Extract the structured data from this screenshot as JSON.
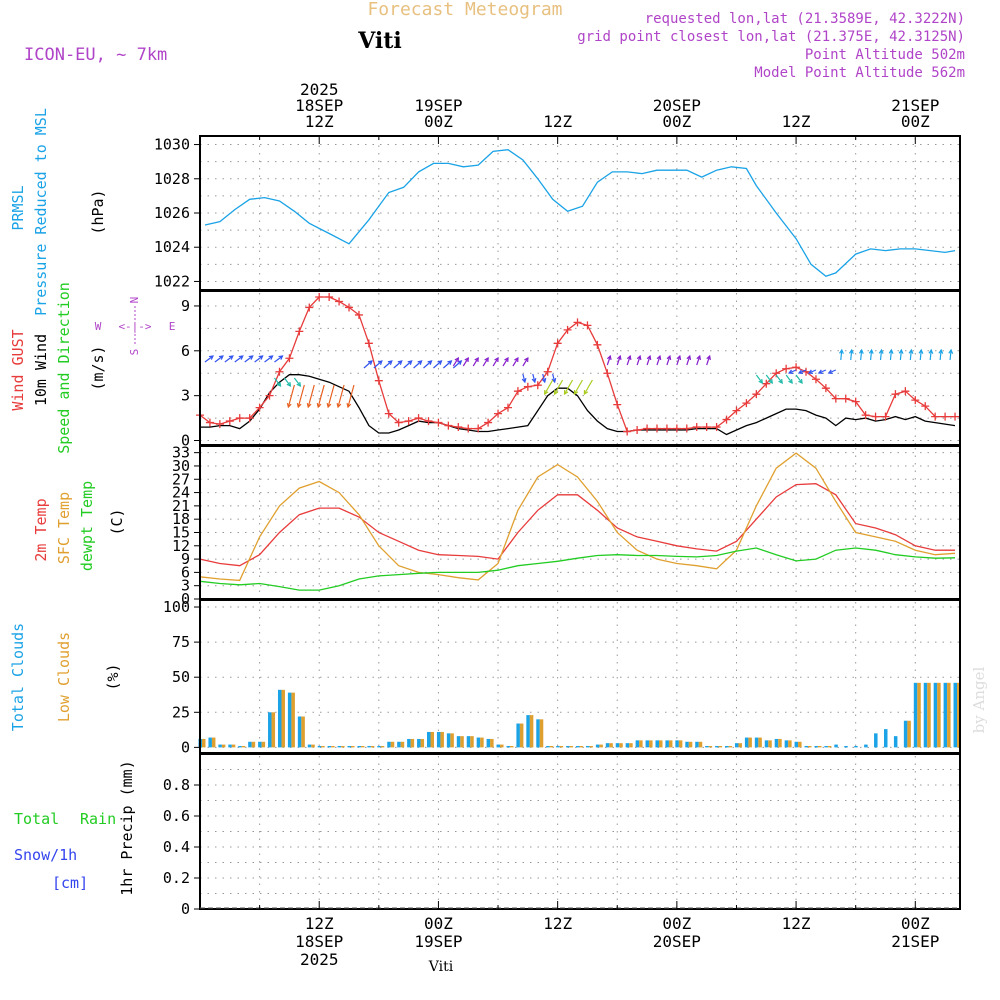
{
  "header": {
    "chart_title": "Forecast Meteogram",
    "location": "Viti",
    "model": "ICON-EU, ~ 7km",
    "requested_point": "requested lon,lat (21.3589E, 42.3222N)",
    "grid_point": "grid point closest lon,lat (21.375E, 42.3125N)",
    "point_altitude": "Point Altitude 502m",
    "model_altitude": "Model Point Altitude 562m",
    "footer_location": "Viti",
    "watermark": "by Angel"
  },
  "colors": {
    "pressure": "#1aa3e6",
    "gust": "#e83b3b",
    "wind": "#000000",
    "temp2m": "#e83b3b",
    "sfc_temp": "#e0a030",
    "dewpoint": "#22cc22",
    "total_clouds": "#1aa3e6",
    "low_clouds": "#e0a030",
    "rain": "#22cc22",
    "snow": "#3344ee",
    "meta_text": "#b044c8",
    "title_text": "#e8c080"
  },
  "time_axis": {
    "top_labels": [
      {
        "hour": 12,
        "lines": [
          "2025",
          "18SEP",
          "12Z"
        ]
      },
      {
        "hour": 24,
        "lines": [
          "19SEP",
          "00Z"
        ]
      },
      {
        "hour": 36,
        "lines": [
          "12Z"
        ]
      },
      {
        "hour": 48,
        "lines": [
          "20SEP",
          "00Z"
        ]
      },
      {
        "hour": 60,
        "lines": [
          "12Z"
        ]
      },
      {
        "hour": 72,
        "lines": [
          "21SEP",
          "00Z"
        ]
      }
    ],
    "bottom_labels": [
      {
        "hour": 12,
        "lines": [
          "12Z",
          "18SEP",
          "2025"
        ]
      },
      {
        "hour": 24,
        "lines": [
          "00Z",
          "19SEP"
        ]
      },
      {
        "hour": 36,
        "lines": [
          "12Z"
        ]
      },
      {
        "hour": 48,
        "lines": [
          "00Z",
          "20SEP"
        ]
      },
      {
        "hour": 60,
        "lines": [
          "12Z"
        ]
      },
      {
        "hour": 72,
        "lines": [
          "00Z",
          "21SEP"
        ]
      }
    ]
  },
  "panels": {
    "pressure": {
      "labels": [
        "PRMSL",
        "Pressure Reduced to MSL",
        "(hPa)"
      ],
      "ticks": [
        1022,
        1024,
        1026,
        1028,
        1030
      ],
      "ylim": [
        1021.5,
        1030.5
      ]
    },
    "wind": {
      "labels": [
        "Wind GUST",
        "10m Wind",
        "Speed and Direction",
        "(m/s)"
      ],
      "ticks": [
        0,
        3,
        6,
        9
      ],
      "ylim": [
        -0.3,
        10
      ],
      "compass": {
        "n": "N",
        "s": "S",
        "w": "W",
        "e": "E",
        "arrows": "<-|->"
      }
    },
    "temp": {
      "labels": [
        "2m Temp",
        "SFC Temp",
        "dewpt Temp",
        "(C)"
      ],
      "ticks": [
        0,
        3,
        6,
        9,
        12,
        15,
        18,
        21,
        24,
        27,
        30,
        33
      ],
      "ylim": [
        0,
        34.5
      ]
    },
    "clouds": {
      "labels": [
        "Total Clouds",
        "Low Clouds",
        "(%)"
      ],
      "ticks": [
        0,
        25,
        50,
        75,
        100
      ],
      "ylim": [
        -4,
        105
      ]
    },
    "precip": {
      "labels": [
        "Total",
        "Rain",
        "Snow/1h",
        "[cm]",
        "1hr Precip (mm)"
      ],
      "ticks": [
        "0",
        "0.2",
        "0.4",
        "0.6",
        "0.8"
      ],
      "ylim": [
        0,
        1
      ]
    }
  },
  "chart_data": {
    "type": "line",
    "time_unit": "hours from 18SEP 00Z",
    "x_range": [
      0,
      76.5
    ],
    "pressure_hpa": {
      "x": [
        0.5,
        2,
        3.5,
        5,
        6.5,
        8,
        9.5,
        11,
        13,
        15,
        17,
        19,
        20.5,
        22,
        23.5,
        25,
        26.5,
        28,
        29.5,
        31,
        32.5,
        34,
        35.5,
        37,
        38.5,
        40,
        41.5,
        43,
        44.5,
        46,
        47.5,
        49,
        50.5,
        52,
        53.5,
        55,
        56,
        58,
        60,
        61.5,
        63,
        64,
        66,
        67.5,
        69,
        70.5,
        72,
        73.5,
        75,
        76
      ],
      "y": [
        1025.3,
        1025.5,
        1026.2,
        1026.8,
        1026.9,
        1026.7,
        1026.1,
        1025.4,
        1024.8,
        1024.2,
        1025.6,
        1027.2,
        1027.5,
        1028.4,
        1028.9,
        1028.9,
        1028.7,
        1028.8,
        1029.6,
        1029.7,
        1029.1,
        1028.0,
        1026.8,
        1026.1,
        1026.4,
        1027.8,
        1028.4,
        1028.4,
        1028.3,
        1028.5,
        1028.5,
        1028.5,
        1028.1,
        1028.5,
        1028.7,
        1028.6,
        1027.6,
        1026.0,
        1024.5,
        1023.0,
        1022.3,
        1022.5,
        1023.6,
        1023.9,
        1023.8,
        1023.9,
        1023.9,
        1023.8,
        1023.7,
        1023.8
      ],
      "ylim": [
        1021.5,
        1030.5
      ]
    },
    "wind_gust_ms": {
      "x": [
        0,
        1,
        2,
        3,
        4,
        5,
        6,
        7,
        8,
        9,
        10,
        11,
        12,
        13,
        14,
        15,
        16,
        17,
        18,
        19,
        20,
        21,
        22,
        23,
        24,
        25,
        26,
        27,
        28,
        29,
        30,
        31,
        32,
        33,
        34,
        35,
        36,
        37,
        38,
        39,
        40,
        41,
        42,
        43,
        44,
        45,
        46,
        47,
        48,
        49,
        50,
        51,
        52,
        53,
        54,
        55,
        56,
        57,
        58,
        59,
        60,
        61,
        62,
        63,
        64,
        65,
        66,
        67,
        68,
        69,
        70,
        71,
        72,
        73,
        74,
        75,
        76
      ],
      "y": [
        1.7,
        1.2,
        1.1,
        1.3,
        1.5,
        1.5,
        2.2,
        3.0,
        4.6,
        5.5,
        7.3,
        8.9,
        9.6,
        9.6,
        9.3,
        8.9,
        8.4,
        6.5,
        4.0,
        1.8,
        1.2,
        1.3,
        1.5,
        1.3,
        1.2,
        1.0,
        0.9,
        0.8,
        0.8,
        1.2,
        1.8,
        2.2,
        3.3,
        3.6,
        3.7,
        4.6,
        6.5,
        7.4,
        7.9,
        7.7,
        6.4,
        4.5,
        2.4,
        0.6,
        0.7,
        0.8,
        0.8,
        0.8,
        0.8,
        0.8,
        0.9,
        0.9,
        0.9,
        1.4,
        2.0,
        2.5,
        3.1,
        3.8,
        4.5,
        4.8,
        4.9,
        4.6,
        4.1,
        3.5,
        2.8,
        2.8,
        2.6,
        1.7,
        1.6,
        1.6,
        3.1,
        3.3,
        2.7,
        2.3,
        1.6,
        1.6,
        1.6
      ],
      "ylim": [
        -0.3,
        10
      ]
    },
    "wind_10m_ms": {
      "x": [
        0,
        1,
        2,
        3,
        4,
        5,
        6,
        7,
        8,
        9,
        10,
        11,
        12,
        13,
        14,
        15,
        16,
        17,
        18,
        19,
        20,
        21,
        22,
        23,
        24,
        25,
        26,
        27,
        28,
        29,
        30,
        31,
        32,
        33,
        34,
        35,
        36,
        37,
        38,
        39,
        40,
        41,
        42,
        43,
        44,
        45,
        46,
        47,
        48,
        49,
        50,
        51,
        52,
        53,
        54,
        55,
        56,
        57,
        58,
        59,
        60,
        61,
        62,
        63,
        64,
        65,
        66,
        67,
        68,
        69,
        70,
        71,
        72,
        73,
        74,
        75,
        76
      ],
      "y": [
        0.9,
        0.9,
        1.0,
        1.0,
        0.8,
        1.3,
        2.1,
        3.2,
        3.9,
        4.4,
        4.4,
        4.3,
        4.1,
        3.9,
        3.6,
        3.3,
        2.2,
        1.0,
        0.5,
        0.5,
        0.7,
        1.0,
        1.3,
        1.2,
        1.2,
        1.0,
        0.8,
        0.7,
        0.6,
        0.6,
        0.7,
        0.8,
        0.9,
        1.0,
        2.0,
        3.0,
        3.5,
        3.5,
        3.0,
        2.0,
        1.3,
        0.8,
        0.6,
        0.6,
        0.7,
        0.7,
        0.7,
        0.7,
        0.7,
        0.7,
        0.8,
        0.8,
        0.8,
        0.4,
        0.7,
        1.0,
        1.2,
        1.5,
        1.8,
        2.1,
        2.1,
        2.0,
        1.7,
        1.5,
        1.0,
        1.5,
        1.4,
        1.5,
        1.3,
        1.4,
        1.6,
        1.4,
        1.6,
        1.3,
        1.2,
        1.1,
        1.0
      ],
      "ylim": [
        -0.3,
        10
      ]
    },
    "temp_2m_c": {
      "x": [
        0,
        2,
        4,
        6,
        8,
        10,
        12,
        14,
        16,
        18,
        20,
        22,
        24,
        26,
        28,
        30,
        32,
        34,
        36,
        38,
        40,
        42,
        44,
        46,
        48,
        50,
        52,
        54,
        56,
        58,
        60,
        62,
        64,
        66,
        68,
        70,
        72,
        74,
        76
      ],
      "y": [
        9,
        8,
        7.5,
        10,
        15,
        19,
        20.5,
        20.5,
        18.5,
        15,
        13,
        11,
        10,
        9.8,
        9.6,
        9,
        15,
        20,
        23.5,
        23.5,
        20,
        16,
        14,
        13,
        12,
        11.3,
        10.8,
        13,
        18,
        23,
        25.8,
        26,
        23.5,
        17,
        16,
        14.5,
        12,
        11,
        11
      ],
      "ylim": [
        0,
        34.5
      ]
    },
    "sfc_temp_c": {
      "x": [
        0,
        2,
        4,
        6,
        8,
        10,
        12,
        14,
        16,
        18,
        20,
        22,
        24,
        26,
        28,
        30,
        32,
        34,
        36,
        38,
        40,
        42,
        44,
        46,
        48,
        50,
        52,
        54,
        56,
        58,
        60,
        62,
        64,
        66,
        68,
        70,
        72,
        74,
        76
      ],
      "y": [
        5,
        4.5,
        4.2,
        14,
        21,
        25,
        26.5,
        24,
        19,
        12,
        7.5,
        6,
        5.5,
        4.8,
        4.3,
        8,
        20,
        27.5,
        30.3,
        27.5,
        22,
        15,
        11,
        9,
        8,
        7.5,
        6.8,
        11,
        21,
        29.5,
        32.9,
        29.5,
        22,
        15,
        14,
        13,
        11,
        10,
        10.3
      ],
      "ylim": [
        0,
        34.5
      ]
    },
    "dewpoint_c": {
      "x": [
        0,
        2,
        4,
        6,
        8,
        10,
        12,
        14,
        16,
        18,
        20,
        22,
        24,
        26,
        28,
        30,
        32,
        34,
        36,
        38,
        40,
        42,
        44,
        46,
        48,
        50,
        52,
        54,
        56,
        58,
        60,
        62,
        64,
        66,
        68,
        70,
        72,
        74,
        76
      ],
      "y": [
        4,
        3.5,
        3.2,
        3.5,
        2.8,
        2.0,
        2.0,
        3.0,
        4.5,
        5.2,
        5.5,
        5.8,
        6,
        6,
        6,
        6.5,
        7.5,
        8,
        8.5,
        9.2,
        9.8,
        10,
        9.8,
        9.8,
        9.6,
        9.5,
        9.8,
        10.8,
        11.5,
        10,
        8.6,
        9,
        11,
        11.5,
        11,
        10,
        9.5,
        9.2,
        9.3
      ],
      "ylim": [
        0,
        34.5
      ]
    },
    "total_clouds_pct": {
      "x": [
        0,
        1,
        2,
        3,
        4,
        5,
        6,
        7,
        8,
        9,
        10,
        11,
        12,
        13,
        14,
        15,
        16,
        17,
        18,
        19,
        20,
        21,
        22,
        23,
        24,
        25,
        26,
        27,
        28,
        29,
        30,
        31,
        32,
        33,
        34,
        35,
        36,
        37,
        38,
        39,
        40,
        41,
        42,
        43,
        44,
        45,
        46,
        47,
        48,
        49,
        50,
        51,
        52,
        53,
        54,
        55,
        56,
        57,
        58,
        59,
        60,
        61,
        62,
        63,
        64,
        65,
        66,
        67,
        68,
        69,
        70,
        71,
        72,
        73,
        74,
        75,
        76
      ],
      "y": [
        6,
        7,
        2,
        2,
        1,
        4,
        4,
        25,
        41,
        39,
        22,
        2,
        1,
        1,
        1,
        1,
        1,
        1,
        1,
        4,
        4,
        6,
        6,
        11,
        11,
        10,
        8,
        8,
        7,
        6,
        2,
        1,
        17,
        23,
        20,
        1,
        1,
        1,
        1,
        1,
        2,
        3,
        3,
        3,
        5,
        5,
        5,
        5,
        5,
        4,
        4,
        1,
        1,
        1,
        3,
        7,
        7,
        5,
        6,
        5,
        4,
        1,
        1,
        1,
        2,
        1,
        1,
        2,
        10,
        13,
        8,
        19,
        46,
        46,
        46,
        46,
        46
      ],
      "ylim": [
        -4,
        105
      ]
    },
    "low_clouds_pct": {
      "x": [
        0,
        1,
        2,
        3,
        4,
        5,
        6,
        7,
        8,
        9,
        10,
        11,
        12,
        13,
        14,
        15,
        16,
        17,
        18,
        19,
        20,
        21,
        22,
        23,
        24,
        25,
        26,
        27,
        28,
        29,
        30,
        31,
        32,
        33,
        34,
        35,
        36,
        37,
        38,
        39,
        40,
        41,
        42,
        43,
        44,
        45,
        46,
        47,
        48,
        49,
        50,
        51,
        52,
        53,
        54,
        55,
        56,
        57,
        58,
        59,
        60,
        61,
        62,
        63,
        64,
        65,
        66,
        67,
        68,
        69,
        70,
        71,
        72,
        73,
        74,
        75,
        76
      ],
      "y": [
        6,
        7,
        2,
        2,
        1,
        4,
        4,
        25,
        41,
        39,
        22,
        2,
        1,
        1,
        1,
        1,
        1,
        1,
        1,
        4,
        4,
        6,
        6,
        11,
        11,
        10,
        8,
        8,
        7,
        6,
        2,
        1,
        17,
        23,
        20,
        1,
        1,
        1,
        1,
        1,
        2,
        3,
        3,
        3,
        5,
        5,
        5,
        5,
        5,
        4,
        4,
        1,
        1,
        1,
        3,
        7,
        7,
        5,
        6,
        5,
        4,
        1,
        1,
        1,
        0,
        0,
        0,
        0,
        0,
        0,
        0,
        19,
        46,
        46,
        46,
        46,
        46
      ],
      "ylim": [
        -4,
        105
      ]
    },
    "precip_mm": {
      "x": [
        0,
        76
      ],
      "y": [
        0,
        0
      ],
      "ylim": [
        0,
        1
      ]
    }
  }
}
